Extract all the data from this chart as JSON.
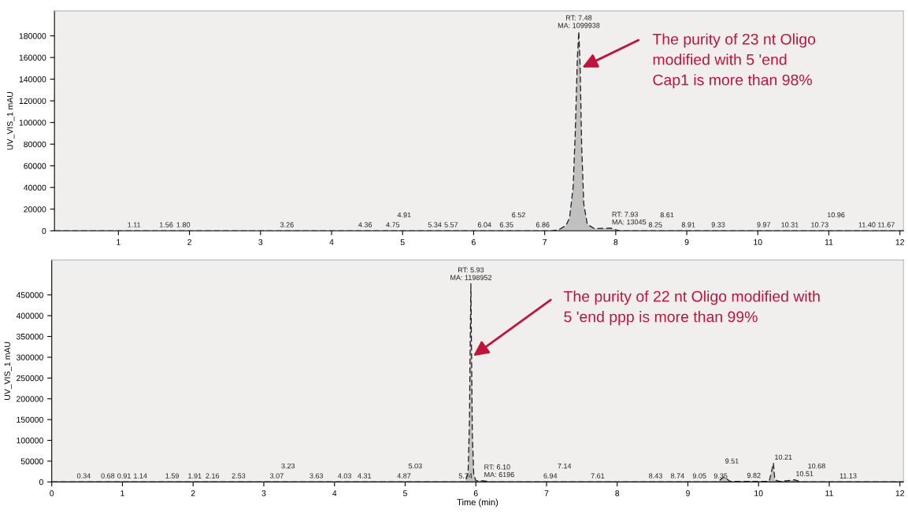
{
  "chart_data": [
    {
      "type": "area",
      "ylabel": "UV_VIS_1 mAU",
      "xlim": [
        0.1,
        12.05
      ],
      "ylim": [
        0,
        203000
      ],
      "xticks": [
        1,
        2,
        3,
        4,
        5,
        6,
        7,
        8,
        9,
        10,
        11,
        12
      ],
      "yticks": [
        0,
        20000,
        40000,
        60000,
        80000,
        100000,
        120000,
        140000,
        160000,
        180000
      ],
      "grid": false,
      "legend": false,
      "line_style": "dashed",
      "series": [
        {
          "color": "#c0c0c0",
          "x": [
            0.1,
            7.1,
            7.2,
            7.3,
            7.35,
            7.4,
            7.43,
            7.46,
            7.48,
            7.5,
            7.52,
            7.55,
            7.6,
            7.7,
            7.93,
            8.05,
            12.05
          ],
          "values": [
            0,
            0,
            1000,
            5000,
            12000,
            40000,
            90000,
            160000,
            184000,
            150000,
            80000,
            25000,
            6000,
            2000,
            2500,
            0,
            0
          ]
        }
      ],
      "annotations": [
        {
          "text": "The purity of 23 nt Oligo\nmodified with 5 'end\nCap1 is more than 98%",
          "x": 7.5,
          "y": 150000
        },
        {
          "text": "1.11",
          "x": 1.11,
          "y": 0
        },
        {
          "text": "1.56",
          "x": 1.56,
          "y": 0
        },
        {
          "text": "1.80",
          "x": 1.8,
          "y": 0
        },
        {
          "text": "3.26",
          "x": 3.26,
          "y": 0
        },
        {
          "text": "4.36",
          "x": 4.36,
          "y": 0
        },
        {
          "text": "4.75",
          "x": 4.75,
          "y": 0
        },
        {
          "text": "4.91",
          "x": 4.91,
          "y": 0
        },
        {
          "text": "5.34",
          "x": 5.34,
          "y": 0
        },
        {
          "text": "5.57",
          "x": 5.57,
          "y": 0
        },
        {
          "text": "6.04",
          "x": 6.04,
          "y": 0
        },
        {
          "text": "6.35",
          "x": 6.35,
          "y": 0
        },
        {
          "text": "6.52",
          "x": 6.52,
          "y": 0
        },
        {
          "text": "6.86",
          "x": 6.86,
          "y": 0
        },
        {
          "text": "RT: 7.48\nMA: 1099938",
          "x": 7.48,
          "y": 184000
        },
        {
          "text": "RT: 7.93\nMA: 13045",
          "x": 7.93,
          "y": 2500
        },
        {
          "text": "8.25",
          "x": 8.25,
          "y": 0
        },
        {
          "text": "8.61",
          "x": 8.61,
          "y": 0
        },
        {
          "text": "8.91",
          "x": 8.91,
          "y": 0
        },
        {
          "text": "9.33",
          "x": 9.33,
          "y": 0
        },
        {
          "text": "9.97",
          "x": 9.97,
          "y": 0
        },
        {
          "text": "10.31",
          "x": 10.31,
          "y": 0
        },
        {
          "text": "10.73",
          "x": 10.73,
          "y": 0
        },
        {
          "text": "10.96",
          "x": 10.96,
          "y": 0
        },
        {
          "text": "11.40",
          "x": 11.4,
          "y": 0
        },
        {
          "text": "11.67",
          "x": 11.67,
          "y": 0
        }
      ]
    },
    {
      "type": "area",
      "xlabel": "Time (min)",
      "ylabel": "UV_VIS_1 mAU",
      "xlim": [
        0,
        12.05
      ],
      "ylim": [
        0,
        534000
      ],
      "xticks": [
        0,
        1,
        2,
        3,
        4,
        5,
        6,
        7,
        8,
        9,
        10,
        11,
        12
      ],
      "yticks": [
        0,
        50000,
        100000,
        150000,
        200000,
        250000,
        300000,
        350000,
        400000,
        450000
      ],
      "grid": false,
      "legend": false,
      "line_style": "dashed",
      "series": [
        {
          "color": "#c0c0c0",
          "x": [
            0,
            5.85,
            5.89,
            5.91,
            5.92,
            5.93,
            5.94,
            5.95,
            5.97,
            6.0,
            6.1,
            6.2,
            9.42,
            9.51,
            9.6,
            10.15,
            10.21,
            10.23,
            10.3,
            10.51,
            10.6,
            12.05
          ],
          "values": [
            0,
            0,
            20000,
            150000,
            330000,
            477000,
            300000,
            120000,
            20000,
            3000,
            3000,
            0,
            0,
            12000,
            1000,
            1000,
            45000,
            5000,
            1000,
            5000,
            0,
            0
          ]
        }
      ],
      "annotations": [
        {
          "text": "The purity of 22 nt Oligo modified with\n5 'end ppp is more than 99%",
          "x": 5.94,
          "y": 300000
        },
        {
          "text": "0.34",
          "x": 0.34,
          "y": 0
        },
        {
          "text": "0.68",
          "x": 0.68,
          "y": 0
        },
        {
          "text": "0.91",
          "x": 0.91,
          "y": 0
        },
        {
          "text": "1.14",
          "x": 1.14,
          "y": 0
        },
        {
          "text": "1.59",
          "x": 1.59,
          "y": 0
        },
        {
          "text": "1.91",
          "x": 1.91,
          "y": 0
        },
        {
          "text": "2.16",
          "x": 2.16,
          "y": 0
        },
        {
          "text": "2.53",
          "x": 2.53,
          "y": 0
        },
        {
          "text": "3.07",
          "x": 3.07,
          "y": 0
        },
        {
          "text": "3.23",
          "x": 3.23,
          "y": 0
        },
        {
          "text": "3.63",
          "x": 3.63,
          "y": 0
        },
        {
          "text": "4.03",
          "x": 4.03,
          "y": 0
        },
        {
          "text": "4.31",
          "x": 4.31,
          "y": 0
        },
        {
          "text": "4.87",
          "x": 4.87,
          "y": 0
        },
        {
          "text": "5.03",
          "x": 5.03,
          "y": 0
        },
        {
          "text": "5.74",
          "x": 5.74,
          "y": 0
        },
        {
          "text": "RT: 5.93\nMA: 1198952",
          "x": 5.93,
          "y": 477000
        },
        {
          "text": "RT: 6.10\nMA: 6196",
          "x": 6.1,
          "y": 3000
        },
        {
          "text": "6.94",
          "x": 6.94,
          "y": 0
        },
        {
          "text": "7.14",
          "x": 7.14,
          "y": 0
        },
        {
          "text": "7.61",
          "x": 7.61,
          "y": 0
        },
        {
          "text": "8.43",
          "x": 8.43,
          "y": 0
        },
        {
          "text": "8.74",
          "x": 8.74,
          "y": 0
        },
        {
          "text": "9.05",
          "x": 9.05,
          "y": 0
        },
        {
          "text": "9.35",
          "x": 9.35,
          "y": 0
        },
        {
          "text": "9.51",
          "x": 9.51,
          "y": 12000
        },
        {
          "text": "9.82",
          "x": 9.82,
          "y": 1000
        },
        {
          "text": "10.21",
          "x": 10.21,
          "y": 45000
        },
        {
          "text": "10.51",
          "x": 10.51,
          "y": 5000
        },
        {
          "text": "10.68",
          "x": 10.68,
          "y": 0
        },
        {
          "text": "11.13",
          "x": 11.13,
          "y": 0
        }
      ]
    }
  ]
}
